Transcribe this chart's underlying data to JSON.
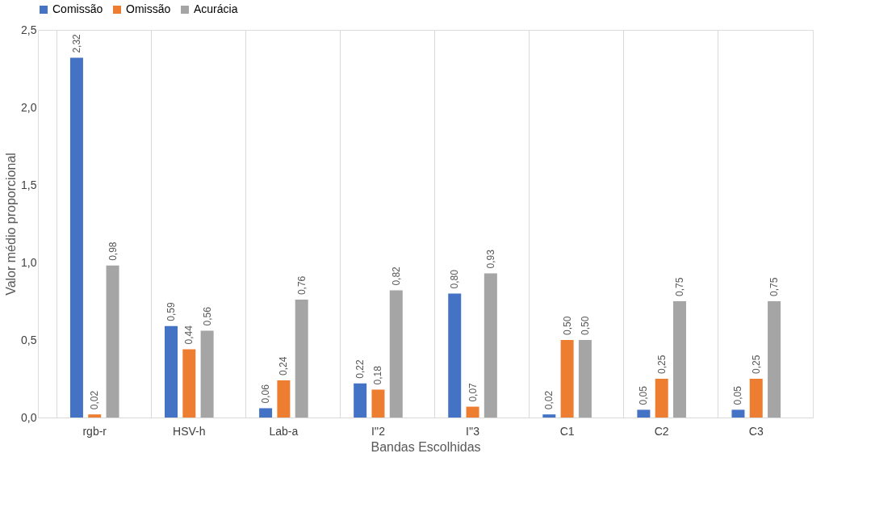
{
  "chart_data": {
    "type": "bar",
    "xlabel": "Bandas Escolhidas",
    "ylabel": "Valor médio proporcional",
    "categories": [
      "rgb-r",
      "HSV-h",
      "Lab-a",
      "I''2",
      "I''3",
      "C1",
      "C2",
      "C3"
    ],
    "series": [
      {
        "name": "Comissão",
        "color": "#4472c4",
        "values": [
          2.32,
          0.59,
          0.06,
          0.22,
          0.8,
          0.02,
          0.05,
          0.05
        ],
        "value_labels": [
          "2,32",
          "0,59",
          "0,06",
          "0,22",
          "0,80",
          "0,02",
          "0,05",
          "0,05"
        ]
      },
      {
        "name": "Omissão",
        "color": "#ed7d31",
        "values": [
          0.02,
          0.44,
          0.24,
          0.18,
          0.07,
          0.5,
          0.25,
          0.25
        ],
        "value_labels": [
          "0,02",
          "0,44",
          "0,24",
          "0,18",
          "0,07",
          "0,50",
          "0,25",
          "0,25"
        ]
      },
      {
        "name": "Acurácia",
        "color": "#a5a5a5",
        "values": [
          0.98,
          0.56,
          0.76,
          0.82,
          0.93,
          0.5,
          0.75,
          0.75
        ],
        "value_labels": [
          "0,98",
          "0,56",
          "0,76",
          "0,82",
          "0,93",
          "0,50",
          "0,75",
          "0,75"
        ]
      }
    ],
    "ylim": [
      0,
      2.5
    ],
    "yticks": [
      {
        "value": 0,
        "label": "0,0"
      },
      {
        "value": 0.5,
        "label": "0,5"
      },
      {
        "value": 1,
        "label": "1,0"
      },
      {
        "value": 1.5,
        "label": "1,5"
      },
      {
        "value": 2,
        "label": "2,0"
      },
      {
        "value": 2.5,
        "label": "2,5"
      }
    ],
    "grid": "x",
    "legend": "top"
  }
}
